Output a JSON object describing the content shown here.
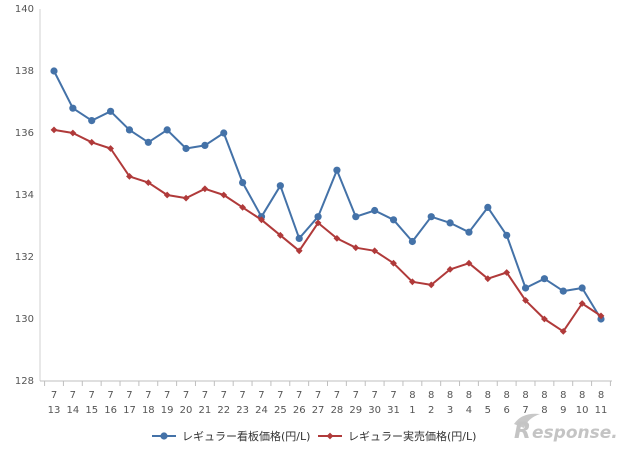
{
  "chart_data": {
    "type": "line",
    "title": "",
    "xlabel": "",
    "ylabel": "",
    "ylim": [
      128,
      140
    ],
    "yticks": [
      "128",
      "130",
      "132",
      "134",
      "136",
      "138",
      "140"
    ],
    "grid": false,
    "legend": "bottom",
    "categories": [
      {
        "month": "7",
        "day": "13"
      },
      {
        "month": "7",
        "day": "14"
      },
      {
        "month": "7",
        "day": "15"
      },
      {
        "month": "7",
        "day": "16"
      },
      {
        "month": "7",
        "day": "17"
      },
      {
        "month": "7",
        "day": "18"
      },
      {
        "month": "7",
        "day": "19"
      },
      {
        "month": "7",
        "day": "20"
      },
      {
        "month": "7",
        "day": "21"
      },
      {
        "month": "7",
        "day": "22"
      },
      {
        "month": "7",
        "day": "23"
      },
      {
        "month": "7",
        "day": "24"
      },
      {
        "month": "7",
        "day": "25"
      },
      {
        "month": "7",
        "day": "26"
      },
      {
        "month": "7",
        "day": "27"
      },
      {
        "month": "7",
        "day": "28"
      },
      {
        "month": "7",
        "day": "29"
      },
      {
        "month": "7",
        "day": "30"
      },
      {
        "month": "7",
        "day": "31"
      },
      {
        "month": "8",
        "day": "1"
      },
      {
        "month": "8",
        "day": "2"
      },
      {
        "month": "8",
        "day": "3"
      },
      {
        "month": "8",
        "day": "4"
      },
      {
        "month": "8",
        "day": "5"
      },
      {
        "month": "8",
        "day": "6"
      },
      {
        "month": "8",
        "day": "7"
      },
      {
        "month": "8",
        "day": "8"
      },
      {
        "month": "8",
        "day": "9"
      },
      {
        "month": "8",
        "day": "10"
      },
      {
        "month": "8",
        "day": "11"
      }
    ],
    "series": [
      {
        "name": "レギュラー看板価格(円/L)",
        "color": "#4472a8",
        "marker": "circle",
        "values": [
          138.0,
          136.8,
          136.4,
          136.7,
          136.1,
          135.7,
          136.1,
          135.5,
          135.6,
          136.0,
          134.4,
          133.3,
          134.3,
          132.6,
          133.3,
          134.8,
          133.3,
          133.5,
          133.2,
          132.5,
          133.3,
          133.1,
          132.8,
          133.6,
          132.7,
          131.0,
          131.3,
          130.9,
          131.0,
          130.0
        ]
      },
      {
        "name": "レギュラー実売価格(円/L)",
        "color": "#b03a3a",
        "marker": "diamond",
        "values": [
          136.1,
          136.0,
          135.7,
          135.5,
          134.6,
          134.4,
          134.0,
          133.9,
          134.2,
          134.0,
          133.6,
          133.2,
          132.7,
          132.2,
          133.1,
          132.6,
          132.3,
          132.2,
          131.8,
          131.2,
          131.1,
          131.6,
          131.8,
          131.3,
          131.5,
          130.6,
          130.0,
          129.6,
          130.5,
          130.1
        ]
      }
    ]
  },
  "watermark": {
    "logo_r": "R",
    "logo_rest": "esponse."
  }
}
